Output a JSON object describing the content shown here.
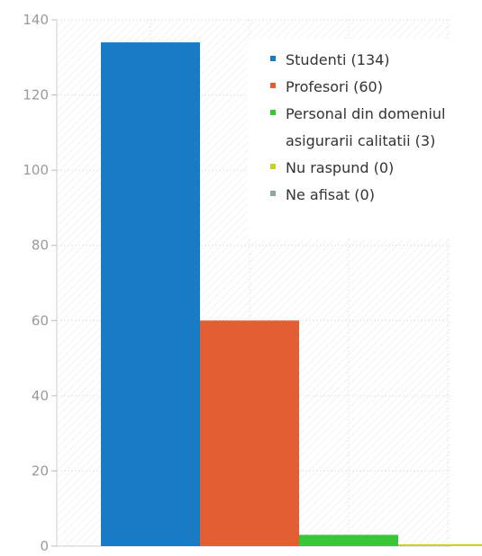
{
  "chart_data": {
    "type": "bar",
    "title": "",
    "xlabel": "",
    "ylabel": "",
    "ylim": [
      0,
      140
    ],
    "yticks": [
      0,
      20,
      40,
      60,
      80,
      100,
      120,
      140
    ],
    "grid": true,
    "legend_position": "top-right",
    "series": [
      {
        "name": "Studenti (134)",
        "value": 134,
        "color": "#1a7bc5"
      },
      {
        "name": "Profesori (60)",
        "value": 60,
        "color": "#e35e32"
      },
      {
        "name": "Personal din domeniul asigurarii calitatii (3)",
        "legend_lines": [
          "Personal din domeniul",
          "asigurarii calitatii (3)"
        ],
        "value": 3,
        "color": "#3cc43c"
      },
      {
        "name": "Nu raspund (0)",
        "value": 0,
        "color": "#c9d21e"
      },
      {
        "name": "Ne afisat (0)",
        "value": 0,
        "color": "#8fa899"
      }
    ]
  }
}
